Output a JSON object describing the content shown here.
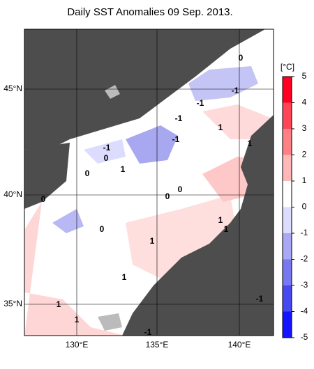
{
  "title": "Daily SST Anomalies 09 Sep. 2013.",
  "map": {
    "lat_labels": [
      "45°N",
      "40°N",
      "35°N"
    ],
    "lon_labels": [
      "130°E",
      "135°E",
      "140°E"
    ],
    "contour_labels": [
      "0",
      "-1",
      "-1",
      "-1",
      "1",
      "-1",
      "-1",
      "1",
      "0",
      "1",
      "0",
      "0",
      "0",
      "0",
      "1",
      "0",
      "1",
      "1",
      "1",
      "-1",
      "1",
      "1",
      "-1"
    ]
  },
  "colorbar": {
    "unit": "[°C]",
    "ticks": [
      5,
      4,
      3,
      2,
      1,
      0,
      -1,
      -2,
      -3,
      -4,
      -5
    ],
    "colors": [
      "#ff0022",
      "#ff4455",
      "#ff8085",
      "#ffb8b8",
      "#ffffff",
      "#dcdcff",
      "#a8a8f5",
      "#7878f0",
      "#4848f0",
      "#1414ff"
    ]
  }
}
